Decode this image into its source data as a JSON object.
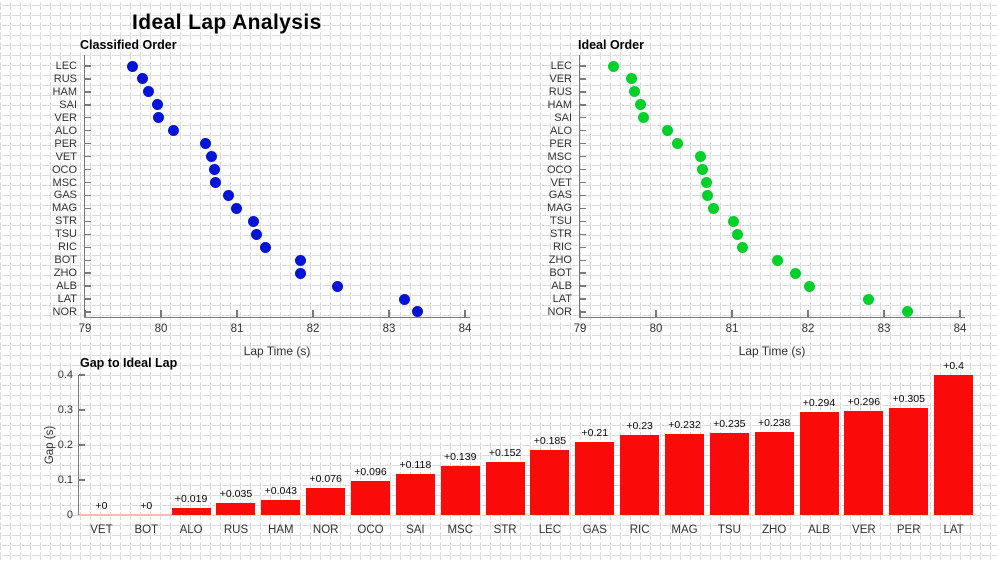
{
  "suptitle": "Ideal Lap Analysis",
  "colors": {
    "classified_points": "#0013d6",
    "ideal_points": "#00d02a",
    "gap_bars": "#fb0a0a",
    "zero_gap_line": "#ffb8b8",
    "axis_spine": "#7a7a7a"
  },
  "chart_data": [
    {
      "type": "scatter",
      "title": "Classified Order",
      "xlabel": "Lap Time (s)",
      "xlim": [
        79,
        84
      ],
      "x_ticks": [
        79,
        80,
        81,
        82,
        83,
        84
      ],
      "categories": [
        "LEC",
        "RUS",
        "HAM",
        "SAI",
        "VER",
        "ALO",
        "PER",
        "VET",
        "OCO",
        "MSC",
        "GAS",
        "MAG",
        "STR",
        "TSU",
        "RIC",
        "BOT",
        "ZHO",
        "ALB",
        "LAT",
        "NOR"
      ],
      "values": [
        79.63,
        79.75,
        79.84,
        79.96,
        79.97,
        80.17,
        80.59,
        80.67,
        80.71,
        80.72,
        80.89,
        80.99,
        81.22,
        81.26,
        81.37,
        81.83,
        81.84,
        82.32,
        83.2,
        83.38
      ]
    },
    {
      "type": "scatter",
      "title": "Ideal Order",
      "xlabel": "Lap Time (s)",
      "xlim": [
        79,
        84
      ],
      "x_ticks": [
        79,
        80,
        81,
        82,
        83,
        84
      ],
      "categories": [
        "LEC",
        "VER",
        "RUS",
        "HAM",
        "SAI",
        "ALO",
        "PER",
        "MSC",
        "OCO",
        "VET",
        "GAS",
        "MAG",
        "TSU",
        "STR",
        "RIC",
        "ZHO",
        "BOT",
        "ALB",
        "LAT",
        "NOR"
      ],
      "values": [
        79.445,
        79.674,
        79.715,
        79.797,
        79.842,
        80.151,
        80.285,
        80.581,
        80.614,
        80.67,
        80.68,
        80.758,
        81.025,
        81.068,
        81.14,
        81.602,
        81.83,
        82.026,
        82.8,
        83.304
      ]
    },
    {
      "type": "bar",
      "title": "Gap to Ideal Lap",
      "ylabel": "Gap (s)",
      "ylim": [
        0,
        0.4
      ],
      "y_ticks": [
        0,
        0.1,
        0.2,
        0.3,
        0.4
      ],
      "y_tick_labels": [
        "0",
        "0.1",
        "0.2",
        "0.3",
        "0.4"
      ],
      "categories": [
        "VET",
        "BOT",
        "ALO",
        "RUS",
        "HAM",
        "NOR",
        "OCO",
        "SAI",
        "MSC",
        "STR",
        "LEC",
        "GAS",
        "RIC",
        "MAG",
        "TSU",
        "ZHO",
        "ALB",
        "VER",
        "PER",
        "LAT"
      ],
      "values": [
        0,
        0,
        0.019,
        0.035,
        0.043,
        0.076,
        0.096,
        0.118,
        0.139,
        0.152,
        0.185,
        0.21,
        0.23,
        0.232,
        0.235,
        0.238,
        0.294,
        0.296,
        0.305,
        0.4
      ],
      "value_labels": [
        "+0",
        "+0",
        "+0.019",
        "+0.035",
        "+0.043",
        "+0.076",
        "+0.096",
        "+0.118",
        "+0.139",
        "+0.152",
        "+0.185",
        "+0.21",
        "+0.23",
        "+0.232",
        "+0.235",
        "+0.238",
        "+0.294",
        "+0.296",
        "+0.305",
        "+0.4"
      ]
    }
  ]
}
